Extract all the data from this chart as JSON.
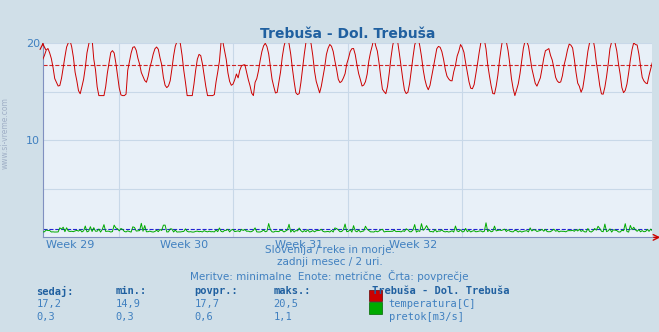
{
  "title": "Trebuša - Dol. Trebuša",
  "bg_color": "#d0dfe8",
  "plot_bg_color": "#e8f0f8",
  "grid_color": "#c8d8e8",
  "title_color": "#2060a0",
  "axis_label_color": "#4080c0",
  "text_color": "#4080c0",
  "week_labels": [
    "Week 29",
    "Week 30",
    "Week 31",
    "Week 32"
  ],
  "ylim": [
    0,
    20
  ],
  "ytick_vals": [
    10,
    20
  ],
  "temp_color": "#cc0000",
  "temp_avg_color": "#cc0000",
  "flow_color": "#00aa00",
  "flow_avg_color": "#0000cc",
  "temp_min": 14.9,
  "temp_max": 20.5,
  "temp_avg": 17.7,
  "temp_current": 17.2,
  "flow_min": 0.3,
  "flow_max": 1.1,
  "flow_avg": 0.6,
  "flow_current": 0.3,
  "n_points": 360,
  "n_weeks": 4,
  "subtitle1": "Slovenija / reke in morje.",
  "subtitle2": "zadnji mesec / 2 uri.",
  "subtitle3": "Meritve: minimalne  Enote: metrične  Črta: povprečje",
  "legend_title": "Trebuša - Dol. Trebuša",
  "label_temp": "temperatura[C]",
  "label_flow": "pretok[m3/s]",
  "col_sedaj": "sedaj:",
  "col_min": "min.:",
  "col_povpr": "povpr.:",
  "col_maks": "maks.:"
}
